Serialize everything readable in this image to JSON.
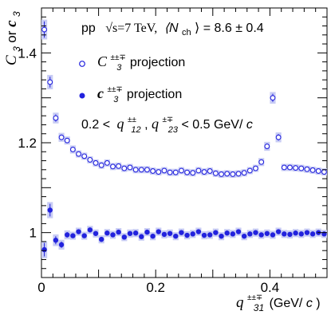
{
  "chart_data": {
    "type": "scatter",
    "title": "",
    "header_text": "pp √s=7 TeV, ⟨N_ch⟩ = 8.6 ± 0.4",
    "header_parts": {
      "system": "pp",
      "sqrt_s": "√s=7 TeV,",
      "nch_symbol": "⟨N",
      "nch_sub": "ch",
      "nch_value": "⟩ = 8.6 ± 0.4"
    },
    "cut_text": {
      "prefix": "0.2 <",
      "q": "q",
      "sup1": "±±",
      "sub1": "12",
      "sep": ",",
      "q2": "q",
      "sup2": "±∓",
      "sub2": "23",
      "suffix": " < 0.5 GeV/",
      "c": "c"
    },
    "xlabel": {
      "q": "q",
      "sup": "±±∓",
      "sub": "31",
      "unit": " (GeV/",
      "c": "c",
      "close": ")"
    },
    "ylabel": {
      "C": "C",
      "sub1": "3",
      "or": " or ",
      "c": "c",
      "sub2": "3"
    },
    "xlim": [
      0,
      0.5
    ],
    "ylim": [
      0.9,
      1.5
    ],
    "x_ticks": [
      0,
      0.2,
      0.4
    ],
    "x_tick_labels": [
      "0",
      "0.2",
      "0.4"
    ],
    "y_ticks": [
      1.0,
      1.2,
      1.4
    ],
    "y_tick_labels": [
      "1",
      "1.2",
      "1.4"
    ],
    "grid": false,
    "legend_position": "top-right",
    "series": [
      {
        "name": "C3±±∓ projection",
        "legend": {
          "symbol": "C",
          "sup": "±±∓",
          "sub": "3",
          "text": " projection"
        },
        "marker": "open-circle",
        "color": "#2222dd",
        "band_color": "#c8ccf4",
        "x": [
          0.005,
          0.015,
          0.025,
          0.035,
          0.045,
          0.055,
          0.065,
          0.075,
          0.085,
          0.095,
          0.105,
          0.115,
          0.125,
          0.135,
          0.145,
          0.155,
          0.165,
          0.175,
          0.185,
          0.195,
          0.205,
          0.215,
          0.225,
          0.235,
          0.245,
          0.255,
          0.265,
          0.275,
          0.285,
          0.295,
          0.305,
          0.315,
          0.325,
          0.335,
          0.345,
          0.355,
          0.365,
          0.375,
          0.385,
          0.395,
          0.405,
          0.415,
          0.425,
          0.435,
          0.445,
          0.455,
          0.465,
          0.475,
          0.485,
          0.495
        ],
        "y": [
          1.452,
          1.335,
          1.255,
          1.212,
          1.205,
          1.185,
          1.175,
          1.17,
          1.162,
          1.155,
          1.15,
          1.155,
          1.147,
          1.148,
          1.143,
          1.145,
          1.14,
          1.14,
          1.14,
          1.137,
          1.135,
          1.138,
          1.134,
          1.134,
          1.138,
          1.134,
          1.133,
          1.138,
          1.135,
          1.137,
          1.132,
          1.13,
          1.131,
          1.13,
          1.131,
          1.133,
          1.138,
          1.143,
          1.157,
          1.192,
          1.3,
          1.212,
          1.145,
          1.145,
          1.144,
          1.143,
          1.141,
          1.139,
          1.137,
          1.135
        ],
        "yerr": [
          0.018,
          0.012,
          0.008,
          0.006,
          0.005,
          0.005,
          0.004,
          0.004,
          0.004,
          0.004,
          0.004,
          0.004,
          0.004,
          0.004,
          0.004,
          0.004,
          0.004,
          0.004,
          0.004,
          0.004,
          0.004,
          0.004,
          0.004,
          0.004,
          0.004,
          0.004,
          0.004,
          0.004,
          0.004,
          0.004,
          0.004,
          0.004,
          0.004,
          0.004,
          0.004,
          0.004,
          0.004,
          0.004,
          0.005,
          0.006,
          0.009,
          0.007,
          0.004,
          0.004,
          0.004,
          0.004,
          0.004,
          0.004,
          0.004,
          0.004
        ]
      },
      {
        "name": "c3±±∓ projection",
        "legend": {
          "symbol": "c",
          "sup": "±±∓",
          "sub": "3",
          "text": " projection"
        },
        "marker": "filled-circle",
        "color": "#2222dd",
        "band_color": "#c8ccf4",
        "x": [
          0.005,
          0.015,
          0.025,
          0.035,
          0.045,
          0.055,
          0.065,
          0.075,
          0.085,
          0.095,
          0.105,
          0.115,
          0.125,
          0.135,
          0.145,
          0.155,
          0.165,
          0.175,
          0.185,
          0.195,
          0.205,
          0.215,
          0.225,
          0.235,
          0.245,
          0.255,
          0.265,
          0.275,
          0.285,
          0.295,
          0.305,
          0.315,
          0.325,
          0.335,
          0.345,
          0.355,
          0.365,
          0.375,
          0.385,
          0.395,
          0.405,
          0.415,
          0.425,
          0.435,
          0.445,
          0.455,
          0.465,
          0.475,
          0.485,
          0.495
        ],
        "y": [
          0.962,
          1.05,
          0.983,
          0.973,
          0.995,
          0.993,
          1.002,
          0.993,
          1.006,
          0.998,
          0.985,
          0.999,
          0.995,
          1.001,
          0.99,
          0.998,
          0.999,
          0.991,
          1.001,
          0.992,
          1.002,
          0.996,
          0.998,
          0.992,
          1.0,
          0.994,
          0.997,
          1.002,
          0.994,
          0.995,
          1.0,
          0.992,
          0.999,
          0.997,
          1.002,
          0.992,
          0.997,
          1.0,
          0.995,
          0.998,
          0.995,
          1.002,
          0.997,
          0.996,
          0.999,
          0.997,
          1.0,
          0.997,
          1.0,
          0.997
        ],
        "yerr": [
          0.015,
          0.014,
          0.009,
          0.007,
          0.006,
          0.005,
          0.005,
          0.005,
          0.005,
          0.005,
          0.005,
          0.005,
          0.005,
          0.005,
          0.005,
          0.005,
          0.005,
          0.005,
          0.005,
          0.005,
          0.005,
          0.005,
          0.005,
          0.005,
          0.005,
          0.005,
          0.005,
          0.005,
          0.005,
          0.005,
          0.005,
          0.005,
          0.005,
          0.005,
          0.005,
          0.005,
          0.005,
          0.005,
          0.005,
          0.005,
          0.005,
          0.005,
          0.005,
          0.005,
          0.005,
          0.005,
          0.005,
          0.005,
          0.005,
          0.005
        ]
      }
    ]
  }
}
